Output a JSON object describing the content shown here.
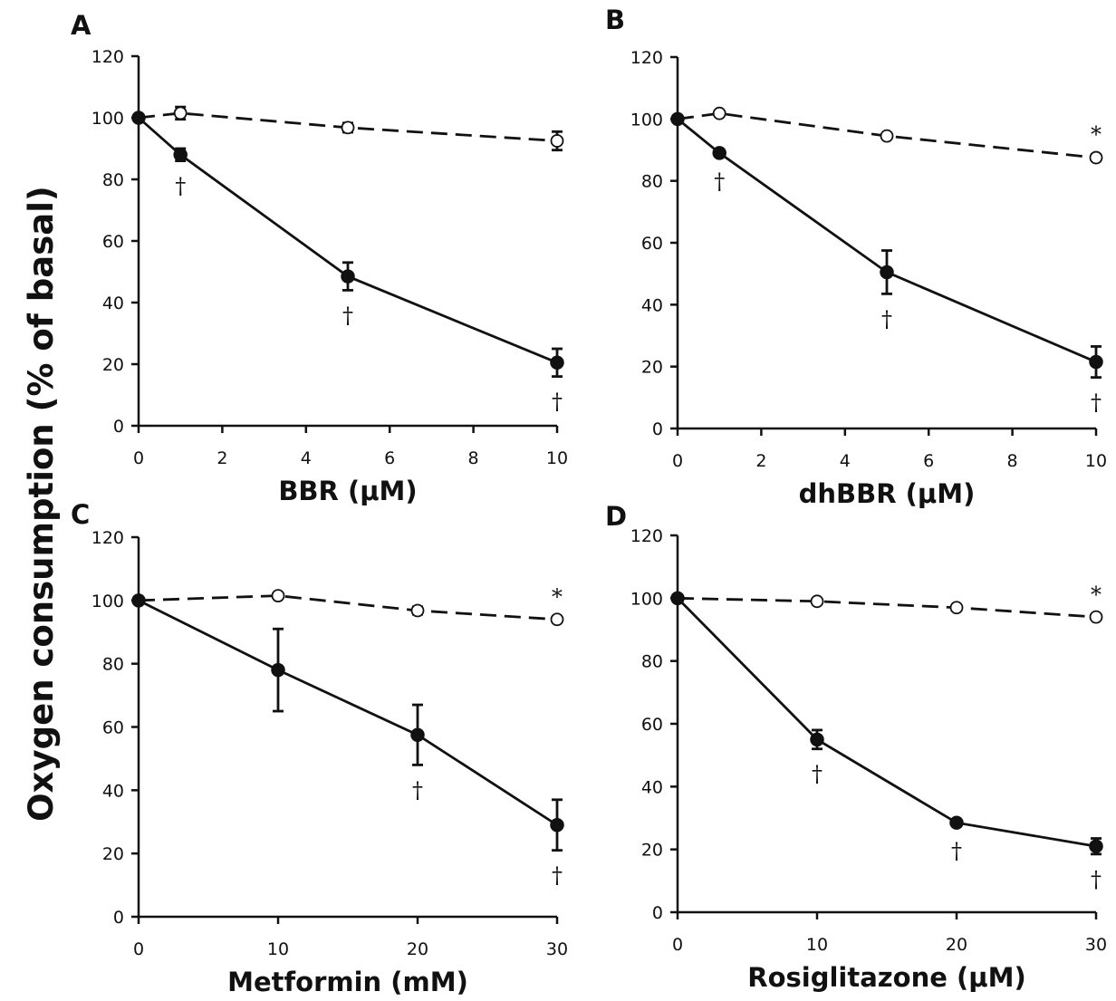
{
  "figure": {
    "ylabel": "Oxygen consumption (% of basal)"
  },
  "chart_data": [
    {
      "type": "line",
      "panel": "A",
      "xlabel": "BBR (μM)",
      "ylabel": "Oxygen consumption (% of basal)",
      "xlim": [
        0,
        10
      ],
      "ylim": [
        0,
        120
      ],
      "xticks": [
        0,
        2,
        4,
        6,
        8,
        10
      ],
      "yticks": [
        0,
        20,
        40,
        60,
        80,
        100,
        120
      ],
      "x": [
        0,
        1,
        5,
        10
      ],
      "series": [
        {
          "marker": "open",
          "line": "dashed",
          "values": [
            100,
            101.5,
            96.8,
            92.5
          ],
          "errors": [
            0,
            2,
            1.5,
            3
          ],
          "marks": [
            "",
            "",
            "",
            ""
          ]
        },
        {
          "marker": "filled",
          "line": "solid",
          "values": [
            100,
            88,
            48.5,
            20.5
          ],
          "errors": [
            0,
            2,
            4.5,
            4.5
          ],
          "marks": [
            "",
            "†",
            "†",
            "†"
          ]
        }
      ]
    },
    {
      "type": "line",
      "panel": "B",
      "xlabel": "dhBBR (μM)",
      "ylabel": "Oxygen consumption (% of basal)",
      "xlim": [
        0,
        10
      ],
      "ylim": [
        0,
        120
      ],
      "xticks": [
        0,
        2,
        4,
        6,
        8,
        10
      ],
      "yticks": [
        0,
        20,
        40,
        60,
        80,
        100,
        120
      ],
      "x": [
        0,
        1,
        5,
        10
      ],
      "series": [
        {
          "marker": "open",
          "line": "dashed",
          "values": [
            100,
            101.8,
            94.5,
            87.5
          ],
          "errors": [
            0,
            0.8,
            0.8,
            1
          ],
          "marks": [
            "",
            "",
            "",
            "*"
          ]
        },
        {
          "marker": "filled",
          "line": "solid",
          "values": [
            100,
            89,
            50.5,
            21.5
          ],
          "errors": [
            0,
            1,
            7,
            5
          ],
          "marks": [
            "",
            "†",
            "†",
            "†"
          ]
        }
      ]
    },
    {
      "type": "line",
      "panel": "C",
      "xlabel": "Metformin (mM)",
      "ylabel": "Oxygen consumption (% of basal)",
      "xlim": [
        0,
        30
      ],
      "ylim": [
        0,
        120
      ],
      "xticks": [
        0,
        10,
        20,
        30
      ],
      "yticks": [
        0,
        20,
        40,
        60,
        80,
        100,
        120
      ],
      "x": [
        0,
        10,
        20,
        30
      ],
      "series": [
        {
          "marker": "open",
          "line": "dashed",
          "values": [
            100,
            101.5,
            96.8,
            94
          ],
          "errors": [
            0,
            0.8,
            1.2,
            0.8
          ],
          "marks": [
            "",
            "",
            "",
            "*"
          ]
        },
        {
          "marker": "filled",
          "line": "solid",
          "values": [
            100,
            78,
            57.5,
            29
          ],
          "errors": [
            0,
            13,
            9.5,
            8
          ],
          "marks": [
            "",
            "",
            "†",
            "†"
          ]
        }
      ]
    },
    {
      "type": "line",
      "panel": "D",
      "xlabel": "Rosiglitazone (μM)",
      "ylabel": "Oxygen consumption (% of basal)",
      "xlim": [
        0,
        30
      ],
      "ylim": [
        0,
        120
      ],
      "xticks": [
        0,
        10,
        20,
        30
      ],
      "yticks": [
        0,
        20,
        40,
        60,
        80,
        100,
        120
      ],
      "x": [
        0,
        10,
        20,
        30
      ],
      "series": [
        {
          "marker": "open",
          "line": "dashed",
          "values": [
            100,
            99,
            97,
            94
          ],
          "errors": [
            0,
            0.5,
            0.5,
            0.8
          ],
          "marks": [
            "",
            "",
            "",
            "*"
          ]
        },
        {
          "marker": "filled",
          "line": "solid",
          "values": [
            100,
            55,
            28.5,
            21
          ],
          "errors": [
            0,
            3,
            1,
            2.5
          ],
          "marks": [
            "",
            "†",
            "†",
            "†"
          ]
        }
      ]
    }
  ]
}
